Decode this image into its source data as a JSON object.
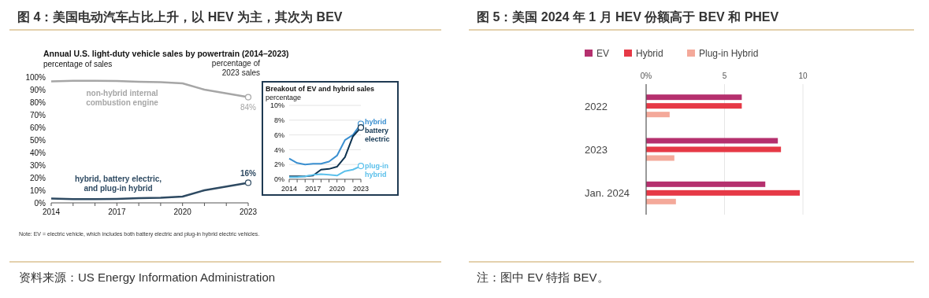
{
  "chart_data": [
    {
      "type": "line",
      "title": "图 4：美国电动汽车占比上升，以 HEV 为主，其次为 BEV",
      "subtitle": "Annual U.S. light-duty vehicle sales by powertrain (2014–2023)",
      "ylabel": "percentage of sales",
      "x": [
        2014,
        2015,
        2016,
        2017,
        2018,
        2019,
        2020,
        2021,
        2022,
        2023
      ],
      "xlim": [
        2014,
        2023
      ],
      "xticks": [
        2014,
        {
          "value": 2015,
          "label": null
        },
        {
          "value": 2016,
          "label": null
        },
        2017,
        {
          "value": 2018,
          "label": null
        },
        {
          "value": 2019,
          "label": null
        },
        2020,
        {
          "value": 2021,
          "label": null
        },
        {
          "value": 2022,
          "label": null
        },
        2023
      ],
      "ylim": [
        0,
        100
      ],
      "yticks": [
        {
          "value": 0,
          "label": "0%"
        },
        {
          "value": 10,
          "label": "10%"
        },
        {
          "value": 20,
          "label": "20%"
        },
        {
          "value": 30,
          "label": "30%"
        },
        {
          "value": 40,
          "label": "40%"
        },
        {
          "value": 50,
          "label": "50%"
        },
        {
          "value": 60,
          "label": "60%"
        },
        {
          "value": 70,
          "label": "70%"
        },
        {
          "value": 80,
          "label": "80%"
        },
        {
          "value": 90,
          "label": "90%"
        },
        {
          "value": 100,
          "label": "100%"
        }
      ],
      "series": [
        {
          "name": "non-hybrid internal combustion engine",
          "color": "#a6a6a6",
          "values": [
            96.5,
            97,
            97,
            96.8,
            96.3,
            96,
            95,
            90,
            87,
            84
          ],
          "value_labels": [
            null,
            null,
            null,
            null,
            null,
            null,
            null,
            null,
            null,
            "84%"
          ]
        },
        {
          "name": "hybrid, battery electric, and plug-in hybrid",
          "color": "#2e4a62",
          "values": [
            3.5,
            3,
            3,
            3.2,
            3.7,
            4,
            5,
            10,
            13,
            16
          ],
          "value_labels": [
            null,
            null,
            null,
            null,
            null,
            null,
            null,
            null,
            null,
            "16%"
          ]
        }
      ],
      "annotations": [
        "percentage of 2023 sales",
        "Note: EV = electric vehicle, which includes both battery electric and plug-in hybrid electric vehicles.",
        "资料来源：US Energy Information Administration"
      ]
    },
    {
      "type": "line",
      "title": "Breakout of EV and hybrid sales",
      "ylabel": "percentage",
      "x": [
        2014,
        2015,
        2016,
        2017,
        2018,
        2019,
        2020,
        2021,
        2022,
        2023
      ],
      "xlim": [
        2014,
        2023
      ],
      "xticks": [
        2014,
        {
          "value": 2015,
          "label": null
        },
        {
          "value": 2016,
          "label": null
        },
        2017,
        {
          "value": 2018,
          "label": null
        },
        {
          "value": 2019,
          "label": null
        },
        2020,
        {
          "value": 2021,
          "label": null
        },
        {
          "value": 2022,
          "label": null
        },
        2023
      ],
      "ylim": [
        0,
        10
      ],
      "yticks": [
        {
          "value": 0,
          "label": "0%"
        },
        {
          "value": 2,
          "label": "2%"
        },
        {
          "value": 4,
          "label": "4%"
        },
        {
          "value": 6,
          "label": "6%"
        },
        {
          "value": 8,
          "label": "8%"
        },
        {
          "value": 10,
          "label": "10%"
        }
      ],
      "grid": "y",
      "series": [
        {
          "name": "hybrid",
          "color": "#3a8fd0",
          "values": [
            2.8,
            2.2,
            2.0,
            2.1,
            2.1,
            2.4,
            3.2,
            5.3,
            6.0,
            7.5
          ]
        },
        {
          "name": "battery electric",
          "color": "#0e3350",
          "values": [
            0.4,
            0.4,
            0.4,
            0.5,
            1.3,
            1.4,
            1.7,
            3.0,
            5.8,
            7.0
          ]
        },
        {
          "name": "plug-in hybrid",
          "color": "#5bc0eb",
          "values": [
            0.3,
            0.3,
            0.4,
            0.6,
            0.7,
            0.6,
            0.5,
            1.1,
            1.3,
            1.8
          ]
        }
      ]
    },
    {
      "type": "bar",
      "orientation": "horizontal",
      "title": "图 5：美国 2024 年 1 月 HEV 份额高于 BEV 和 PHEV",
      "categories": [
        "2022",
        "2023",
        "Jan. 2024"
      ],
      "xlim": [
        0,
        10
      ],
      "xticks": [
        {
          "value": 0,
          "label": "0%"
        },
        5,
        10
      ],
      "grid": "x",
      "legend": "top left",
      "series": [
        {
          "name": "EV",
          "color": "#b5306e",
          "values": [
            6.1,
            8.4,
            7.6
          ]
        },
        {
          "name": "Hybrid",
          "color": "#e63946",
          "values": [
            6.1,
            8.6,
            9.8
          ]
        },
        {
          "name": "Plug-in Hybrid",
          "color": "#f4a99a",
          "values": [
            1.5,
            1.8,
            1.9
          ]
        }
      ],
      "annotations": [
        "注：图中 EV 特指 BEV。"
      ]
    }
  ]
}
